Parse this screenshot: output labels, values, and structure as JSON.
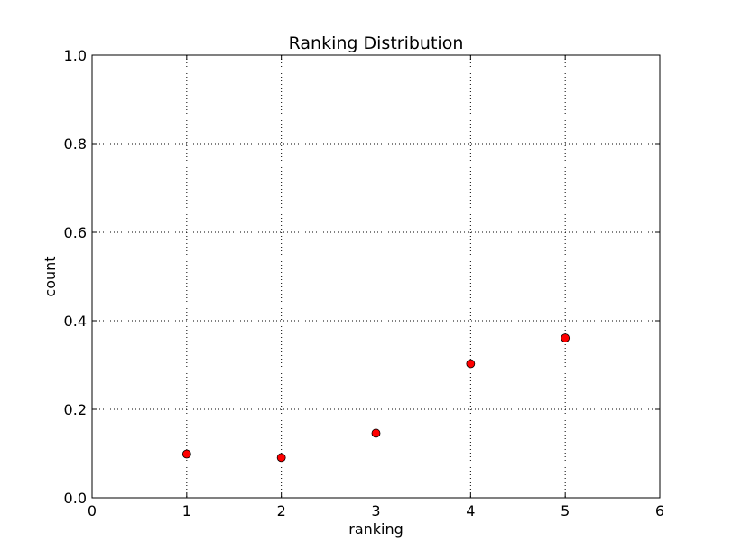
{
  "chart_data": {
    "type": "scatter",
    "title": "Ranking Distribution",
    "xlabel": "ranking",
    "ylabel": "count",
    "xlim": [
      0,
      6
    ],
    "ylim": [
      0,
      1.0
    ],
    "x_ticks": [
      "0",
      "1",
      "2",
      "3",
      "4",
      "5",
      "6"
    ],
    "y_ticks": [
      "0.0",
      "0.2",
      "0.4",
      "0.6",
      "0.8",
      "1.0"
    ],
    "x_tick_values": [
      0,
      1,
      2,
      3,
      4,
      5,
      6
    ],
    "y_tick_values": [
      0,
      0.2,
      0.4,
      0.6,
      0.8,
      1.0
    ],
    "grid": true,
    "marker_color": "#ff0000",
    "marker_edge_color": "#000000",
    "points": [
      {
        "x": 1,
        "y": 0.099
      },
      {
        "x": 2,
        "y": 0.091
      },
      {
        "x": 3,
        "y": 0.146
      },
      {
        "x": 4,
        "y": 0.303
      },
      {
        "x": 5,
        "y": 0.361
      }
    ]
  }
}
